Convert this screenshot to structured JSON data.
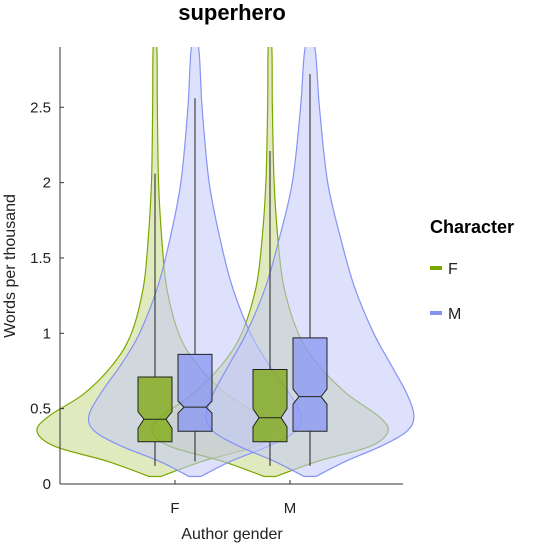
{
  "chart_data": {
    "type": "violin",
    "title": "superhero",
    "xlabel": "Author gender",
    "ylabel": "Words per thousand",
    "ylim": [
      0,
      2.9
    ],
    "yticks": [
      0,
      0.5,
      1,
      1.5,
      2,
      2.5
    ],
    "ytick_labels": [
      "0",
      "0.5",
      "1",
      "1.5",
      "2",
      "2.5"
    ],
    "categories": [
      "F",
      "M"
    ],
    "legend": {
      "title": "Character",
      "placement": "right",
      "entries": [
        {
          "label": "F",
          "color": "#7aa600"
        },
        {
          "label": "M",
          "color": "#8593f4"
        }
      ]
    },
    "series": [
      {
        "name": "F",
        "color": "#7aa600",
        "fill": "#c9d98a",
        "groups": [
          {
            "category": "F",
            "box": {
              "q1": 0.28,
              "median": 0.43,
              "q3": 0.71,
              "notch_low": 0.37,
              "notch_high": 0.48,
              "whisker_low": 0.12,
              "whisker_high": 2.06
            },
            "density": [
              [
                0.05,
                0.05
              ],
              [
                0.15,
                0.4
              ],
              [
                0.25,
                0.85
              ],
              [
                0.35,
                1.0
              ],
              [
                0.45,
                0.9
              ],
              [
                0.6,
                0.6
              ],
              [
                0.8,
                0.35
              ],
              [
                1.0,
                0.2
              ],
              [
                1.3,
                0.1
              ],
              [
                1.6,
                0.06
              ],
              [
                2.0,
                0.03
              ],
              [
                2.5,
                0.02
              ],
              [
                2.9,
                0.015
              ]
            ]
          },
          {
            "category": "M",
            "box": {
              "q1": 0.28,
              "median": 0.44,
              "q3": 0.76,
              "notch_low": 0.38,
              "notch_high": 0.5,
              "whisker_low": 0.12,
              "whisker_high": 2.21
            },
            "density": [
              [
                0.05,
                0.05
              ],
              [
                0.15,
                0.4
              ],
              [
                0.25,
                0.85
              ],
              [
                0.35,
                1.0
              ],
              [
                0.45,
                0.92
              ],
              [
                0.6,
                0.65
              ],
              [
                0.8,
                0.4
              ],
              [
                1.0,
                0.24
              ],
              [
                1.3,
                0.12
              ],
              [
                1.6,
                0.07
              ],
              [
                2.0,
                0.035
              ],
              [
                2.5,
                0.02
              ],
              [
                2.9,
                0.015
              ]
            ]
          }
        ]
      },
      {
        "name": "M",
        "color": "#8593f4",
        "fill": "#c3c9f8",
        "groups": [
          {
            "category": "F",
            "box": {
              "q1": 0.35,
              "median": 0.51,
              "q3": 0.86,
              "notch_low": 0.47,
              "notch_high": 0.55,
              "whisker_low": 0.15,
              "whisker_high": 2.56
            },
            "density": [
              [
                0.05,
                0.05
              ],
              [
                0.15,
                0.3
              ],
              [
                0.25,
                0.62
              ],
              [
                0.35,
                0.85
              ],
              [
                0.45,
                0.9
              ],
              [
                0.6,
                0.8
              ],
              [
                0.8,
                0.62
              ],
              [
                1.0,
                0.47
              ],
              [
                1.3,
                0.32
              ],
              [
                1.6,
                0.22
              ],
              [
                2.0,
                0.12
              ],
              [
                2.5,
                0.06
              ],
              [
                2.9,
                0.03
              ]
            ]
          },
          {
            "category": "M",
            "box": {
              "q1": 0.35,
              "median": 0.58,
              "q3": 0.97,
              "notch_low": 0.53,
              "notch_high": 0.63,
              "whisker_low": 0.12,
              "whisker_high": 2.72
            },
            "density": [
              [
                0.05,
                0.05
              ],
              [
                0.15,
                0.3
              ],
              [
                0.25,
                0.6
              ],
              [
                0.35,
                0.82
              ],
              [
                0.45,
                0.88
              ],
              [
                0.6,
                0.82
              ],
              [
                0.8,
                0.68
              ],
              [
                1.0,
                0.54
              ],
              [
                1.3,
                0.38
              ],
              [
                1.6,
                0.27
              ],
              [
                2.0,
                0.15
              ],
              [
                2.5,
                0.08
              ],
              [
                2.9,
                0.04
              ]
            ]
          }
        ]
      }
    ]
  }
}
